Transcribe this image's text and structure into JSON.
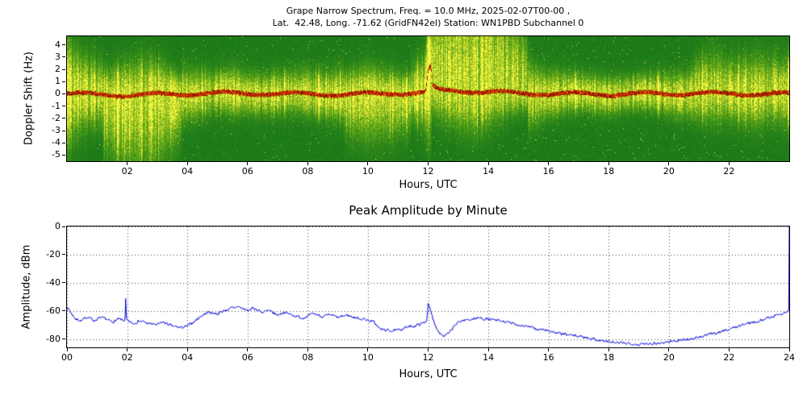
{
  "chart_data": [
    {
      "type": "heatmap",
      "title_line1": "Grape Narrow Spectrum, Freq. = 10.0 MHz, 2025-02-07T00-00 ,",
      "title_line2": "Lat.  42.48, Long. -71.62 (GridFN42el) Station: WN1PBD Subchannel 0",
      "xlabel": "Hours, UTC",
      "ylabel": "Doppler Shift (Hz)",
      "xlim": [
        0,
        24
      ],
      "ylim": [
        -5.5,
        4.7
      ],
      "xticks": [
        2,
        4,
        6,
        8,
        10,
        12,
        14,
        16,
        18,
        20,
        22
      ],
      "xtick_labels": [
        "02",
        "04",
        "06",
        "08",
        "10",
        "12",
        "14",
        "16",
        "18",
        "20",
        "22"
      ],
      "yticks": [
        4,
        3,
        2,
        1,
        0,
        -1,
        -2,
        -3,
        -4,
        -5
      ],
      "ytick_labels": [
        "4",
        "3",
        "2",
        "1",
        "0",
        "-1",
        "-2",
        "-3",
        "-4",
        "-5"
      ],
      "colors": {
        "background": "#197819",
        "noise_low": "#5a9c1e",
        "noise_mid": "#b4c828",
        "noise_high": "#fafa46",
        "carrier": "#c82800",
        "carrier_dark": "#781400"
      },
      "carrier_track": [
        [
          0,
          0.0
        ],
        [
          1,
          -0.05
        ],
        [
          2,
          -0.1
        ],
        [
          3,
          -0.05
        ],
        [
          4,
          0.0
        ],
        [
          5,
          0.05
        ],
        [
          6,
          0.05
        ],
        [
          7,
          0.0
        ],
        [
          8,
          0.0
        ],
        [
          9,
          -0.05
        ],
        [
          10,
          0.0
        ],
        [
          11,
          0.05
        ],
        [
          11.9,
          0.1
        ],
        [
          12.0,
          2.0
        ],
        [
          12.08,
          2.2
        ],
        [
          12.15,
          0.6
        ],
        [
          12.3,
          0.3
        ],
        [
          13,
          0.25
        ],
        [
          13.5,
          0.2
        ],
        [
          14,
          0.15
        ],
        [
          15,
          0.05
        ],
        [
          16,
          0.0
        ],
        [
          17,
          0.0
        ],
        [
          18,
          -0.05
        ],
        [
          19,
          0.0
        ],
        [
          20,
          0.0
        ],
        [
          21,
          0.05
        ],
        [
          22,
          0.0
        ],
        [
          23,
          0.0
        ],
        [
          24,
          0.0
        ]
      ],
      "activity_spread": [
        [
          0,
          2.4
        ],
        [
          0.5,
          1.8
        ],
        [
          1,
          1.5
        ],
        [
          1.5,
          1.9
        ],
        [
          2,
          2.2
        ],
        [
          2.5,
          2.4
        ],
        [
          3,
          2.2
        ],
        [
          3.5,
          1.6
        ],
        [
          4,
          1.2
        ],
        [
          4.5,
          1.1
        ],
        [
          5,
          1.0
        ],
        [
          5.5,
          1.1
        ],
        [
          6,
          1.0
        ],
        [
          6.5,
          1.0
        ],
        [
          7,
          1.0
        ],
        [
          7.5,
          1.05
        ],
        [
          8,
          1.1
        ],
        [
          8.5,
          1.1
        ],
        [
          9,
          1.2
        ],
        [
          9.5,
          1.5
        ],
        [
          10,
          1.7
        ],
        [
          10.5,
          1.6
        ],
        [
          11,
          1.4
        ],
        [
          11.5,
          1.3
        ],
        [
          11.9,
          1.8
        ],
        [
          12,
          3.0
        ],
        [
          12.2,
          2.6
        ],
        [
          12.5,
          2.8
        ],
        [
          13,
          3.2
        ],
        [
          13.5,
          3.4
        ],
        [
          14,
          3.0
        ],
        [
          14.5,
          2.4
        ],
        [
          15,
          1.8
        ],
        [
          15.5,
          1.4
        ],
        [
          16,
          1.1
        ],
        [
          16.5,
          1.0
        ],
        [
          17,
          0.9
        ],
        [
          17.5,
          0.9
        ],
        [
          18,
          0.9
        ],
        [
          18.5,
          0.85
        ],
        [
          19,
          0.85
        ],
        [
          19.5,
          0.9
        ],
        [
          20,
          1.0
        ],
        [
          20.5,
          1.1
        ],
        [
          21,
          1.3
        ],
        [
          21.5,
          1.5
        ],
        [
          22,
          1.3
        ],
        [
          22.5,
          1.4
        ],
        [
          23,
          1.5
        ],
        [
          23.5,
          1.4
        ],
        [
          24,
          1.6
        ]
      ],
      "skew_windows": [
        {
          "start": 1.2,
          "end": 3.8,
          "up": 0.7,
          "down": 1.5
        },
        {
          "start": 9.2,
          "end": 11.4,
          "up": 0.75,
          "down": 1.3
        },
        {
          "start": 12.1,
          "end": 15.3,
          "up": 1.8,
          "down": 0.55
        },
        {
          "start": 20.8,
          "end": 23.6,
          "up": 1.2,
          "down": 1.0
        }
      ]
    },
    {
      "type": "line",
      "title": "Peak Amplitude by Minute",
      "xlabel": "Hours, UTC",
      "ylabel": "Amplitude, dBm",
      "xlim": [
        0,
        24
      ],
      "ylim": [
        -86,
        0
      ],
      "xticks": [
        0,
        2,
        4,
        6,
        8,
        10,
        12,
        14,
        16,
        18,
        20,
        22,
        24
      ],
      "xtick_labels": [
        "00",
        "02",
        "04",
        "06",
        "08",
        "10",
        "12",
        "14",
        "16",
        "18",
        "20",
        "22",
        "24"
      ],
      "yticks": [
        0,
        -20,
        -40,
        -60,
        -80
      ],
      "ytick_labels": [
        "0",
        "-20",
        "-40",
        "-60",
        "-80"
      ],
      "line_color": "#0000dd",
      "grid": true,
      "series": [
        {
          "name": "peak_amplitude_dbm",
          "points": [
            [
              0,
              -57
            ],
            [
              0.15,
              -62
            ],
            [
              0.3,
              -66
            ],
            [
              0.5,
              -67
            ],
            [
              0.7,
              -64
            ],
            [
              0.9,
              -67
            ],
            [
              1.1,
              -65
            ],
            [
              1.3,
              -66
            ],
            [
              1.5,
              -68
            ],
            [
              1.7,
              -66
            ],
            [
              1.93,
              -67
            ],
            [
              1.95,
              -52
            ],
            [
              1.98,
              -67
            ],
            [
              2.2,
              -69
            ],
            [
              2.4,
              -67
            ],
            [
              2.7,
              -69
            ],
            [
              3,
              -70
            ],
            [
              3.2,
              -68
            ],
            [
              3.5,
              -71
            ],
            [
              3.8,
              -72
            ],
            [
              4,
              -71
            ],
            [
              4.2,
              -68
            ],
            [
              4.5,
              -63
            ],
            [
              4.7,
              -61
            ],
            [
              5,
              -62
            ],
            [
              5.2,
              -60
            ],
            [
              5.5,
              -58
            ],
            [
              5.7,
              -57
            ],
            [
              6,
              -60
            ],
            [
              6.2,
              -58
            ],
            [
              6.5,
              -61
            ],
            [
              6.7,
              -60
            ],
            [
              7,
              -63
            ],
            [
              7.2,
              -61
            ],
            [
              7.5,
              -63
            ],
            [
              7.8,
              -65
            ],
            [
              8,
              -64
            ],
            [
              8.2,
              -62
            ],
            [
              8.5,
              -64
            ],
            [
              8.8,
              -63
            ],
            [
              9,
              -65
            ],
            [
              9.3,
              -63
            ],
            [
              9.6,
              -65
            ],
            [
              9.9,
              -66
            ],
            [
              10.2,
              -68
            ],
            [
              10.4,
              -73
            ],
            [
              10.7,
              -74
            ],
            [
              11,
              -74
            ],
            [
              11.2,
              -72
            ],
            [
              11.5,
              -71
            ],
            [
              11.8,
              -69
            ],
            [
              11.95,
              -67
            ],
            [
              12,
              -55
            ],
            [
              12.05,
              -58
            ],
            [
              12.15,
              -65
            ],
            [
              12.3,
              -73
            ],
            [
              12.5,
              -78
            ],
            [
              12.7,
              -76
            ],
            [
              12.9,
              -70
            ],
            [
              13.1,
              -67
            ],
            [
              13.4,
              -66
            ],
            [
              13.7,
              -65
            ],
            [
              14,
              -66
            ],
            [
              14.3,
              -67
            ],
            [
              14.6,
              -68
            ],
            [
              15,
              -70
            ],
            [
              15.3,
              -71
            ],
            [
              15.6,
              -73
            ],
            [
              16,
              -74
            ],
            [
              16.3,
              -76
            ],
            [
              16.6,
              -77
            ],
            [
              17,
              -78
            ],
            [
              17.3,
              -79
            ],
            [
              17.7,
              -81
            ],
            [
              18,
              -82
            ],
            [
              18.3,
              -83
            ],
            [
              18.7,
              -83
            ],
            [
              19,
              -84
            ],
            [
              19.3,
              -83
            ],
            [
              19.7,
              -83
            ],
            [
              20,
              -82
            ],
            [
              20.3,
              -81
            ],
            [
              20.7,
              -80
            ],
            [
              21,
              -79
            ],
            [
              21.3,
              -77
            ],
            [
              21.7,
              -75
            ],
            [
              22,
              -73
            ],
            [
              22.3,
              -71
            ],
            [
              22.6,
              -69
            ],
            [
              23,
              -67
            ],
            [
              23.3,
              -65
            ],
            [
              23.6,
              -63
            ],
            [
              23.9,
              -61
            ],
            [
              23.99,
              -60
            ],
            [
              24,
              0
            ]
          ]
        }
      ]
    }
  ]
}
